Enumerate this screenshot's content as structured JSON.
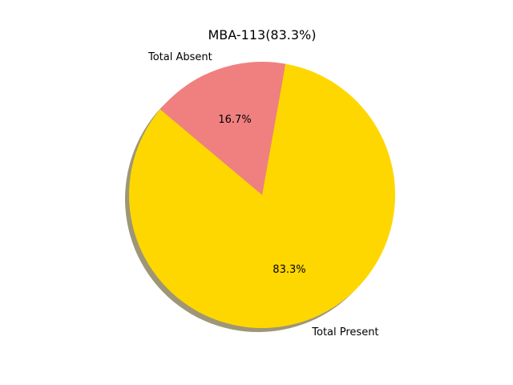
{
  "chart_data": {
    "type": "pie",
    "title": "MBA-113(83.3%)",
    "slices": [
      {
        "label": "Total Present",
        "value": 83.3,
        "pct_label": "83.3%",
        "color": "#FFD700"
      },
      {
        "label": "Total Absent",
        "value": 16.7,
        "pct_label": "16.7%",
        "color": "#F08080"
      }
    ],
    "shadow": true,
    "shadow_color": "#9e9676",
    "legend": "none"
  }
}
